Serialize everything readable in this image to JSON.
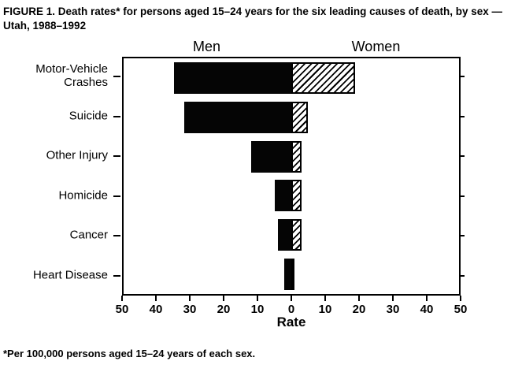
{
  "title": "FIGURE 1. Death rates* for persons aged 15–24 years for the six leading causes of death, by sex — Utah, 1988–1992",
  "footnote": "*Per 100,000 persons aged 15–24 years of each sex.",
  "chart_data": {
    "type": "bar",
    "orientation": "horizontal-diverging",
    "title": "Death rates for persons aged 15–24 years for the six leading causes of death, by sex — Utah, 1988–1992",
    "group_labels": {
      "left": "Men",
      "right": "Women"
    },
    "categories": [
      "Motor-Vehicle Crashes",
      "Suicide",
      "Other Injury",
      "Homicide",
      "Cancer",
      "Heart Disease"
    ],
    "series": [
      {
        "name": "Men",
        "side": "left",
        "style": "solid-black",
        "values": [
          35,
          32,
          12,
          5,
          4,
          2
        ]
      },
      {
        "name": "Women",
        "side": "right",
        "style": "hatched",
        "values": [
          19,
          5,
          3,
          3,
          3,
          1
        ]
      }
    ],
    "xlabel": "Rate",
    "ylabel": "",
    "axis_ticks": [
      50,
      40,
      30,
      20,
      10,
      0,
      10,
      20,
      30,
      40,
      50
    ],
    "xlim_each_side": [
      0,
      50
    ],
    "grid": false,
    "legend_position": "column-headers-top"
  }
}
